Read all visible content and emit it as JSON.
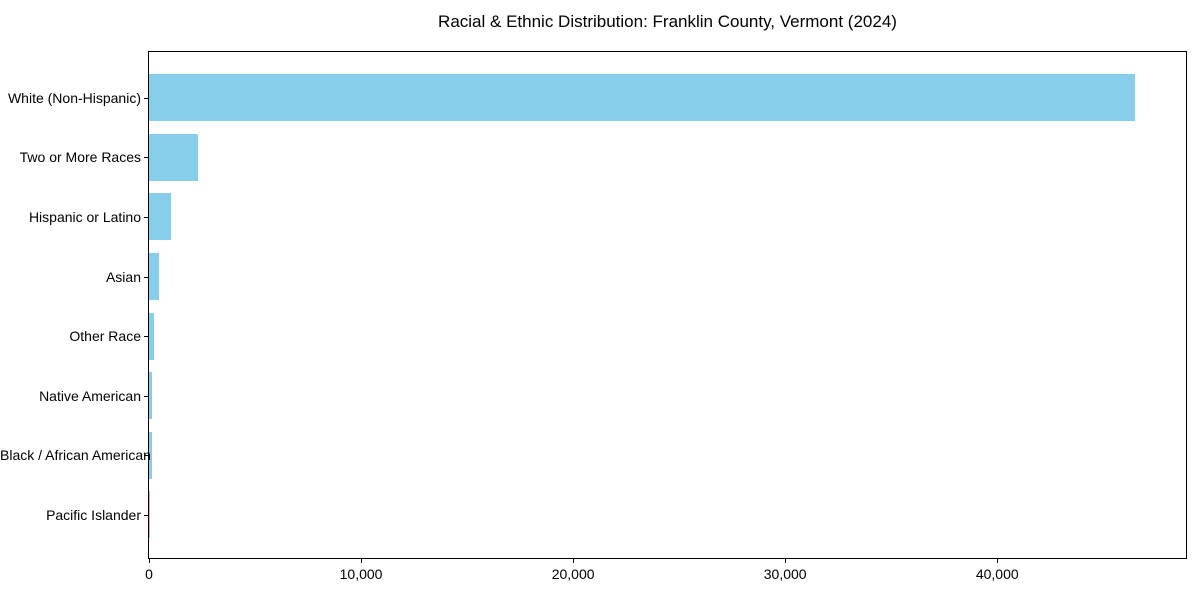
{
  "title": "Racial & Ethnic Distribution: Franklin County, Vermont (2024)",
  "chart_data": {
    "type": "bar",
    "orientation": "horizontal",
    "title": "Racial & Ethnic Distribution: Franklin County, Vermont (2024)",
    "categories": [
      "White (Non-Hispanic)",
      "Two or More Races",
      "Hispanic or Latino",
      "Asian",
      "Other Race",
      "Native American",
      "Black / African American",
      "Pacific Islander"
    ],
    "values": [
      46500,
      2300,
      1020,
      450,
      250,
      130,
      120,
      15
    ],
    "xlabel": "",
    "ylabel": "",
    "xlim": [
      0,
      48900
    ],
    "x_ticks": [
      {
        "value": 0,
        "label": "0"
      },
      {
        "value": 10000,
        "label": "10,000"
      },
      {
        "value": 20000,
        "label": "20,000"
      },
      {
        "value": 30000,
        "label": "30,000"
      },
      {
        "value": 40000,
        "label": "40,000"
      }
    ],
    "bar_color": "#87CEEB",
    "grid": false,
    "legend": "none",
    "background": "#ffffff"
  }
}
